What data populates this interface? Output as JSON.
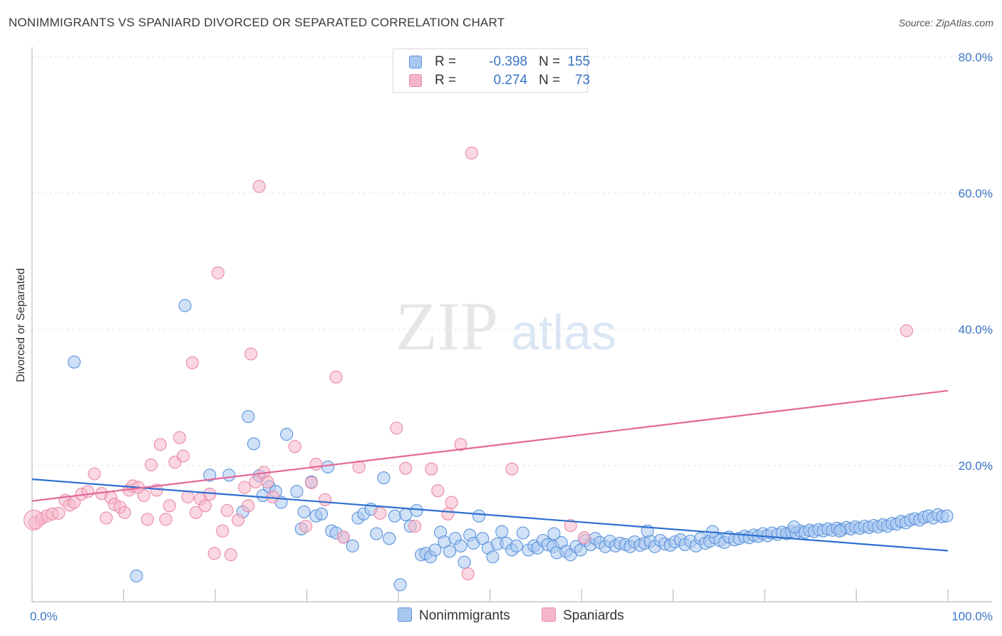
{
  "header": {
    "title": "NONIMMIGRANTS VS SPANIARD DIVORCED OR SEPARATED CORRELATION CHART",
    "source": "Source: ZipAtlas.com"
  },
  "watermark": {
    "zip": "ZIP",
    "atlas": "atlas"
  },
  "legend": {
    "rows": [
      {
        "r_label": "R =",
        "r_value": "-0.398",
        "n_label": "N =",
        "n_value": "155"
      },
      {
        "r_label": "R =",
        "r_value": "0.274",
        "n_label": "N =",
        "n_value": "73"
      }
    ]
  },
  "bottom_legend": {
    "series_a": "Nonimmigrants",
    "series_b": "Spaniards"
  },
  "colors": {
    "blue_fill": "#a9c8f0",
    "blue_stroke": "#5b93dc",
    "blue_line": "#2f6fd1",
    "pink_fill": "#f5b6c9",
    "pink_stroke": "#e98aa8",
    "pink_line": "#e2689a",
    "tick_text": "#3a74c4",
    "grid": "#e3e3e3"
  },
  "chart_data": {
    "type": "scatter",
    "title": "NONIMMIGRANTS VS SPANIARD DIVORCED OR SEPARATED CORRELATION CHART",
    "xlabel": "",
    "ylabel": "Divorced or Separated",
    "xlim": [
      0,
      100
    ],
    "ylim": [
      0,
      80
    ],
    "x_tick_labels": [
      "0.0%",
      "100.0%"
    ],
    "y_ticks": [
      20,
      40,
      60,
      80
    ],
    "y_tick_labels": [
      "20.0%",
      "40.0%",
      "60.0%",
      "80.0%"
    ],
    "grid": true,
    "legend_position": "top-center",
    "series": [
      {
        "name": "Nonimmigrants",
        "r": -0.398,
        "n": 155,
        "trend": [
          [
            0,
            18.0
          ],
          [
            100,
            7.5
          ]
        ],
        "points": [
          [
            4.6,
            35.2
          ],
          [
            11.4,
            3.8
          ],
          [
            16.7,
            43.5
          ],
          [
            19.4,
            18.6
          ],
          [
            21.5,
            18.6
          ],
          [
            23.0,
            13.2
          ],
          [
            23.6,
            27.2
          ],
          [
            24.2,
            23.2
          ],
          [
            24.8,
            18.5
          ],
          [
            25.2,
            15.6
          ],
          [
            25.9,
            16.9
          ],
          [
            26.6,
            16.2
          ],
          [
            27.2,
            14.6
          ],
          [
            27.8,
            24.6
          ],
          [
            28.9,
            16.2
          ],
          [
            29.4,
            10.7
          ],
          [
            29.7,
            13.2
          ],
          [
            30.5,
            17.6
          ],
          [
            31.0,
            12.6
          ],
          [
            31.6,
            12.9
          ],
          [
            32.3,
            19.8
          ],
          [
            32.7,
            10.4
          ],
          [
            33.2,
            10.1
          ],
          [
            34.0,
            9.5
          ],
          [
            35.0,
            8.2
          ],
          [
            35.6,
            12.3
          ],
          [
            36.2,
            12.9
          ],
          [
            37.0,
            13.6
          ],
          [
            37.6,
            10.0
          ],
          [
            38.4,
            18.2
          ],
          [
            39.0,
            9.3
          ],
          [
            39.6,
            12.6
          ],
          [
            40.2,
            2.5
          ],
          [
            40.8,
            12.8
          ],
          [
            41.3,
            11.1
          ],
          [
            42.0,
            13.4
          ],
          [
            42.5,
            6.9
          ],
          [
            43.0,
            7.1
          ],
          [
            43.5,
            6.6
          ],
          [
            44.0,
            7.6
          ],
          [
            44.6,
            10.2
          ],
          [
            45.0,
            8.8
          ],
          [
            45.6,
            7.4
          ],
          [
            46.2,
            9.3
          ],
          [
            46.8,
            8.2
          ],
          [
            47.2,
            5.8
          ],
          [
            47.8,
            9.8
          ],
          [
            48.2,
            8.6
          ],
          [
            48.8,
            12.6
          ],
          [
            49.2,
            9.3
          ],
          [
            49.8,
            7.9
          ],
          [
            50.3,
            6.6
          ],
          [
            50.8,
            8.5
          ],
          [
            51.3,
            10.3
          ],
          [
            51.8,
            8.6
          ],
          [
            52.4,
            7.6
          ],
          [
            52.9,
            8.2
          ],
          [
            53.6,
            10.1
          ],
          [
            54.2,
            7.6
          ],
          [
            54.8,
            8.2
          ],
          [
            55.2,
            7.9
          ],
          [
            55.8,
            9.0
          ],
          [
            56.3,
            8.4
          ],
          [
            56.9,
            8.1
          ],
          [
            57.3,
            7.2
          ],
          [
            57.8,
            8.7
          ],
          [
            58.3,
            7.4
          ],
          [
            58.8,
            6.9
          ],
          [
            59.4,
            8.1
          ],
          [
            59.9,
            7.6
          ],
          [
            60.4,
            9.0
          ],
          [
            61.0,
            8.4
          ],
          [
            61.5,
            9.3
          ],
          [
            62.0,
            8.7
          ],
          [
            62.6,
            8.1
          ],
          [
            63.1,
            8.9
          ],
          [
            63.7,
            8.2
          ],
          [
            64.2,
            8.6
          ],
          [
            64.8,
            8.4
          ],
          [
            65.3,
            8.1
          ],
          [
            65.8,
            8.8
          ],
          [
            66.4,
            8.3
          ],
          [
            66.9,
            8.6
          ],
          [
            67.5,
            8.9
          ],
          [
            68.0,
            8.1
          ],
          [
            68.6,
            9.0
          ],
          [
            69.1,
            8.5
          ],
          [
            69.7,
            8.3
          ],
          [
            70.2,
            8.8
          ],
          [
            70.8,
            9.1
          ],
          [
            71.3,
            8.4
          ],
          [
            71.9,
            8.9
          ],
          [
            72.5,
            8.2
          ],
          [
            73.0,
            9.3
          ],
          [
            73.5,
            8.6
          ],
          [
            74.0,
            8.9
          ],
          [
            74.6,
            9.4
          ],
          [
            75.1,
            9.0
          ],
          [
            75.6,
            8.7
          ],
          [
            76.1,
            9.5
          ],
          [
            76.7,
            9.1
          ],
          [
            77.2,
            9.3
          ],
          [
            77.8,
            9.6
          ],
          [
            78.3,
            9.4
          ],
          [
            78.8,
            9.8
          ],
          [
            79.3,
            9.6
          ],
          [
            79.8,
            10.0
          ],
          [
            80.3,
            9.7
          ],
          [
            80.8,
            10.1
          ],
          [
            81.4,
            9.9
          ],
          [
            81.9,
            10.2
          ],
          [
            82.4,
            10.0
          ],
          [
            82.9,
            10.3
          ],
          [
            83.4,
            10.1
          ],
          [
            83.9,
            10.4
          ],
          [
            84.4,
            10.2
          ],
          [
            84.9,
            10.5
          ],
          [
            85.4,
            10.3
          ],
          [
            85.9,
            10.6
          ],
          [
            86.4,
            10.4
          ],
          [
            86.9,
            10.7
          ],
          [
            87.4,
            10.5
          ],
          [
            87.9,
            10.8
          ],
          [
            88.4,
            10.6
          ],
          [
            88.9,
            10.9
          ],
          [
            89.4,
            10.7
          ],
          [
            89.9,
            11.0
          ],
          [
            90.4,
            10.8
          ],
          [
            90.9,
            11.1
          ],
          [
            91.4,
            10.9
          ],
          [
            91.9,
            11.2
          ],
          [
            92.4,
            11.0
          ],
          [
            92.9,
            11.3
          ],
          [
            93.4,
            11.1
          ],
          [
            93.9,
            11.5
          ],
          [
            94.4,
            11.4
          ],
          [
            94.9,
            11.8
          ],
          [
            95.4,
            11.6
          ],
          [
            95.9,
            12.0
          ],
          [
            96.4,
            12.2
          ],
          [
            96.9,
            12.0
          ],
          [
            97.4,
            12.4
          ],
          [
            97.9,
            12.6
          ],
          [
            98.4,
            12.3
          ],
          [
            98.9,
            12.8
          ],
          [
            99.4,
            12.5
          ],
          [
            99.9,
            12.6
          ],
          [
            57.0,
            10.0
          ],
          [
            67.2,
            10.4
          ],
          [
            74.3,
            10.3
          ],
          [
            83.2,
            11.0
          ],
          [
            88.2,
            10.4
          ]
        ]
      },
      {
        "name": "Spaniards",
        "r": 0.274,
        "n": 73,
        "trend": [
          [
            0,
            14.8
          ],
          [
            100,
            31.0
          ]
        ],
        "points": [
          [
            0.3,
            11.6
          ],
          [
            1.0,
            12.2
          ],
          [
            1.6,
            12.6
          ],
          [
            2.2,
            12.9
          ],
          [
            2.9,
            13.0
          ],
          [
            3.6,
            14.9
          ],
          [
            4.1,
            14.2
          ],
          [
            4.6,
            14.6
          ],
          [
            5.4,
            15.8
          ],
          [
            6.1,
            16.2
          ],
          [
            6.8,
            18.8
          ],
          [
            7.6,
            15.9
          ],
          [
            8.1,
            12.3
          ],
          [
            8.6,
            15.3
          ],
          [
            9.0,
            14.3
          ],
          [
            9.6,
            13.9
          ],
          [
            10.1,
            13.1
          ],
          [
            10.6,
            16.4
          ],
          [
            11.0,
            17.0
          ],
          [
            11.6,
            16.8
          ],
          [
            12.2,
            15.6
          ],
          [
            12.6,
            12.1
          ],
          [
            13.0,
            20.1
          ],
          [
            13.6,
            16.4
          ],
          [
            14.0,
            23.1
          ],
          [
            14.6,
            12.1
          ],
          [
            15.0,
            14.1
          ],
          [
            15.6,
            20.5
          ],
          [
            16.1,
            24.1
          ],
          [
            16.5,
            21.4
          ],
          [
            17.0,
            15.4
          ],
          [
            17.5,
            35.1
          ],
          [
            17.9,
            13.1
          ],
          [
            18.4,
            15.1
          ],
          [
            18.9,
            14.1
          ],
          [
            19.4,
            15.8
          ],
          [
            19.9,
            7.1
          ],
          [
            20.3,
            48.3
          ],
          [
            20.8,
            10.4
          ],
          [
            21.3,
            13.4
          ],
          [
            21.7,
            6.9
          ],
          [
            22.5,
            12.0
          ],
          [
            23.2,
            16.8
          ],
          [
            23.6,
            14.1
          ],
          [
            23.9,
            36.4
          ],
          [
            24.4,
            17.6
          ],
          [
            24.8,
            61.0
          ],
          [
            25.3,
            19.0
          ],
          [
            25.7,
            17.6
          ],
          [
            26.3,
            15.4
          ],
          [
            28.7,
            22.8
          ],
          [
            29.9,
            11.1
          ],
          [
            30.5,
            17.5
          ],
          [
            31.0,
            20.2
          ],
          [
            32.0,
            15.0
          ],
          [
            33.2,
            33.0
          ],
          [
            34.0,
            9.5
          ],
          [
            35.7,
            19.8
          ],
          [
            38.0,
            13.0
          ],
          [
            39.8,
            25.5
          ],
          [
            40.8,
            19.6
          ],
          [
            41.8,
            11.1
          ],
          [
            43.6,
            19.5
          ],
          [
            44.3,
            16.3
          ],
          [
            45.4,
            12.9
          ],
          [
            45.8,
            14.6
          ],
          [
            46.8,
            23.1
          ],
          [
            47.6,
            4.1
          ],
          [
            48.0,
            65.9
          ],
          [
            52.4,
            19.5
          ],
          [
            58.8,
            11.2
          ],
          [
            60.3,
            9.4
          ],
          [
            95.5,
            39.8
          ]
        ]
      }
    ]
  }
}
